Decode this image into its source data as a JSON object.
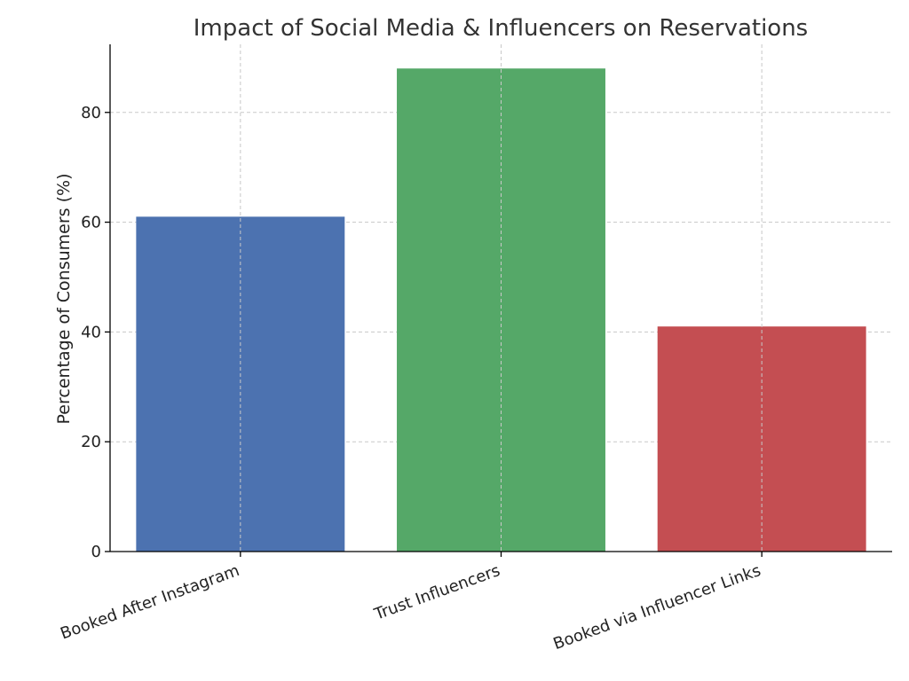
{
  "chart_data": {
    "type": "bar",
    "title": "Impact of Social Media & Influencers on Reservations",
    "xlabel": "",
    "ylabel": "Percentage of Consumers (%)",
    "categories": [
      "Booked After Instagram",
      "Trust Influencers",
      "Booked via Influencer Links"
    ],
    "values": [
      61,
      88,
      41
    ],
    "colors": [
      "#4c72b0",
      "#55a868",
      "#c44e52"
    ],
    "ylim": [
      0,
      92.4
    ],
    "yticks": [
      0,
      20,
      40,
      60,
      80
    ],
    "grid": true,
    "legend": "none"
  }
}
